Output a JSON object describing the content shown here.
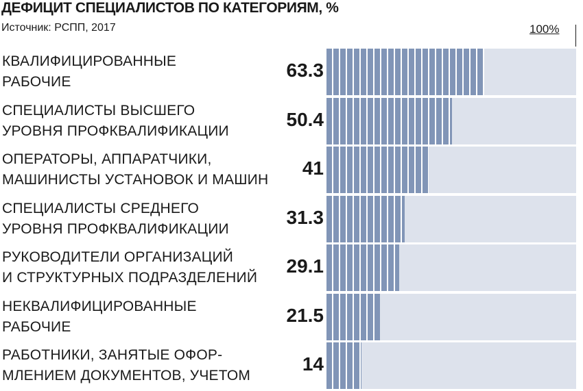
{
  "title": "ДЕФИЦИТ СПЕЦИАЛИСТОВ ПО КАТЕГОРИЯМ, %",
  "source": "Источник: РСПП, 2017",
  "scale_label": "100%",
  "colors": {
    "bar": "#8195b7",
    "track": "#dde2ec",
    "text": "#1a1a1a"
  },
  "chart_data": {
    "type": "bar",
    "orientation": "horizontal",
    "title": "ДЕФИЦИТ СПЕЦИАЛИСТОВ ПО КАТЕГОРИЯМ, %",
    "xlim": [
      0,
      100
    ],
    "categories": [
      [
        "КВАЛИФИЦИРОВАННЫЕ",
        "РАБОЧИЕ"
      ],
      [
        "СПЕЦИАЛИСТЫ ВЫСШЕГО",
        "УРОВНЯ ПРОФКВАЛИФИКАЦИИ"
      ],
      [
        "ОПЕРАТОРЫ, АППАРАТЧИКИ,",
        "МАШИНИСТЫ УСТАНОВОК И МАШИН"
      ],
      [
        "СПЕЦИАЛИСТЫ СРЕДНЕГО",
        "УРОВНЯ ПРОФКВАЛИФИКАЦИИ"
      ],
      [
        "РУКОВОДИТЕЛИ ОРГАНИЗАЦИЙ",
        "И СТРУКТУРНЫХ ПОДРАЗДЕЛЕНИЙ"
      ],
      [
        "НЕКВАЛИФИЦИРОВАННЫЕ",
        "РАБОЧИЕ"
      ],
      [
        "РАБОТНИКИ, ЗАНЯТЫЕ ОФОР-",
        "МЛЕНИЕМ ДОКУМЕНТОВ, УЧЕТОМ"
      ]
    ],
    "values": [
      63.3,
      50.4,
      41,
      31.3,
      29.1,
      21.5,
      14
    ],
    "value_labels": [
      "63.3",
      "50.4",
      "41",
      "31.3",
      "29.1",
      "21.5",
      "14"
    ],
    "grid": false,
    "legend": "none"
  }
}
